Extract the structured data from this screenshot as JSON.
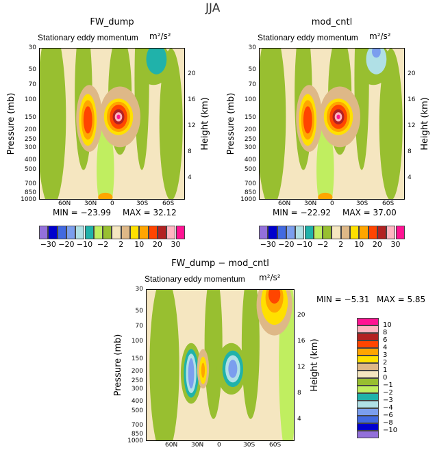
{
  "title": "JJA",
  "colors": {
    "levels16": [
      "#9370DB",
      "#0000CD",
      "#4169E1",
      "#7B9EEE",
      "#B0E0E6",
      "#20B2AA",
      "#C0EE60",
      "#98BF30",
      "#F5E6C0",
      "#DEB887",
      "#FFE000",
      "#FFA500",
      "#FF4500",
      "#B22222",
      "#FFB6C1",
      "#FF1493"
    ]
  },
  "chart_data": [
    {
      "type": "heatmap",
      "title": "FW_dump",
      "subtitle": "Stationary eddy momentum",
      "units": "m²/s²",
      "ylabel": "Pressure (mb)",
      "ylabel_right": "Height (km)",
      "x_ticks": [
        "60N",
        "30N",
        "0",
        "30S",
        "60S"
      ],
      "y_ticks": [
        "30",
        "50",
        "70",
        "100",
        "150",
        "200",
        "250",
        "300",
        "400",
        "500",
        "700",
        "850",
        "1000"
      ],
      "y_ticks_right": [
        "20",
        "16",
        "12",
        "8",
        "4"
      ],
      "min_label": "MIN = −23.99",
      "max_label": "MAX = 32.12",
      "colorbar_labels": [
        "−30",
        "−20",
        "−10",
        "−2",
        "2",
        "10",
        "20",
        "30"
      ]
    },
    {
      "type": "heatmap",
      "title": "mod_cntl",
      "subtitle": "Stationary eddy momentum",
      "units": "m²/s²",
      "ylabel": "Pressure (mb)",
      "ylabel_right": "Height (km)",
      "x_ticks": [
        "60N",
        "30N",
        "0",
        "30S",
        "60S"
      ],
      "y_ticks": [
        "30",
        "50",
        "70",
        "100",
        "150",
        "200",
        "250",
        "300",
        "400",
        "500",
        "700",
        "850",
        "1000"
      ],
      "y_ticks_right": [
        "20",
        "16",
        "12",
        "8",
        "4"
      ],
      "min_label": "MIN = −22.92",
      "max_label": "MAX = 37.00",
      "colorbar_labels": [
        "−30",
        "−20",
        "−10",
        "−2",
        "2",
        "10",
        "20",
        "30"
      ]
    },
    {
      "type": "heatmap",
      "title": "FW_dump − mod_cntl",
      "subtitle": "Stationary eddy momentum",
      "units": "m²/s²",
      "ylabel": "Pressure (mb)",
      "ylabel_right": "Height (km)",
      "x_ticks": [
        "60N",
        "30N",
        "0",
        "30S",
        "60S"
      ],
      "y_ticks": [
        "30",
        "50",
        "70",
        "100",
        "150",
        "200",
        "250",
        "300",
        "400",
        "500",
        "700",
        "850",
        "1000"
      ],
      "y_ticks_right": [
        "20",
        "16",
        "12",
        "8",
        "4"
      ],
      "min_label": "MIN = −5.31",
      "max_label": "MAX = 5.85",
      "colorbar_labels": [
        "10",
        "8",
        "6",
        "4",
        "3",
        "2",
        "1",
        "0",
        "−1",
        "−2",
        "−3",
        "−4",
        "−6",
        "−8",
        "−10"
      ]
    }
  ]
}
